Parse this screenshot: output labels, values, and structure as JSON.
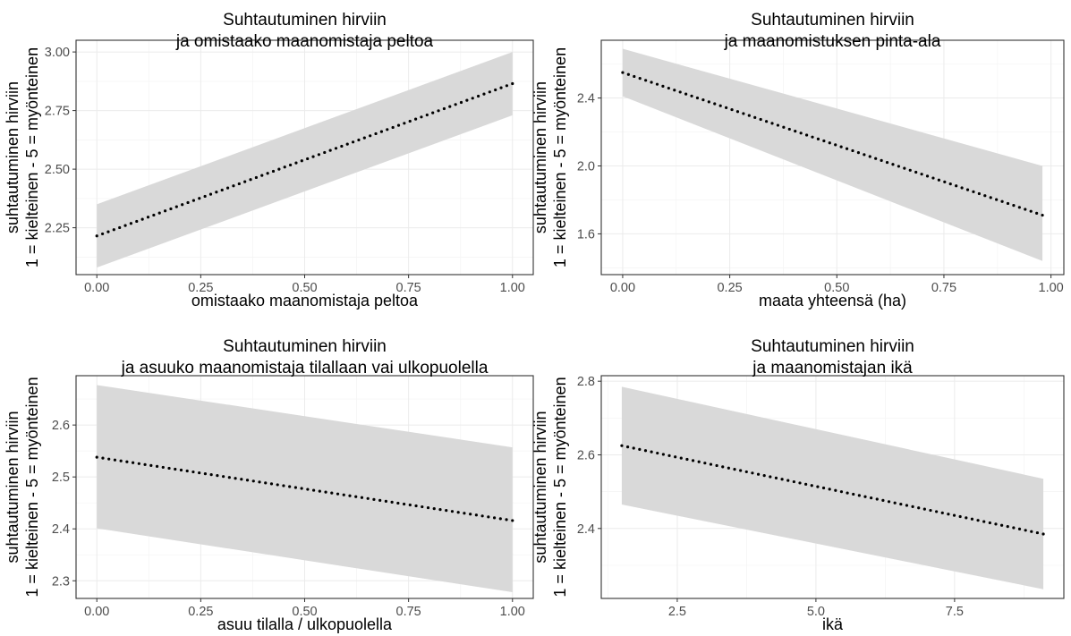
{
  "chart_data": [
    {
      "type": "line",
      "title": [
        "Suhtautuminen hirviin",
        "ja omistaako maanomistaja peltoa"
      ],
      "xlabel": "omistaako maanomistaja peltoa",
      "ylabel": [
        "suhtautuminen hirviin",
        "1 = kielteinen - 5 = myönteinen"
      ],
      "xlim": [
        -0.05,
        1.05
      ],
      "ylim": [
        2.05,
        3.05
      ],
      "xticks": [
        0,
        0.25,
        0.5,
        0.75,
        1
      ],
      "xtick_labels": [
        "0.00",
        "0.25",
        "0.50",
        "0.75",
        "1.00"
      ],
      "yticks": [
        2.25,
        2.5,
        2.75,
        3.0
      ],
      "ytick_labels": [
        "2.25",
        "2.50",
        "2.75",
        "3.00"
      ],
      "line": {
        "x": [
          0,
          1
        ],
        "y": [
          2.215,
          2.865
        ]
      },
      "ribbon": {
        "x": [
          0,
          1
        ],
        "lower": [
          2.08,
          2.73
        ],
        "upper": [
          2.35,
          3.0
        ]
      },
      "line_style": "dotted",
      "grid": true
    },
    {
      "type": "line",
      "title": [
        "Suhtautuminen hirviin",
        "ja maanomistuksen pinta-ala"
      ],
      "xlabel": "maata yhteensä (ha)",
      "ylabel": [
        "suhtautuminen hirviin",
        "1 = kielteinen - 5 = myönteinen"
      ],
      "xlim": [
        -0.05,
        1.03
      ],
      "ylim": [
        1.36,
        2.74
      ],
      "xticks": [
        0,
        0.25,
        0.5,
        0.75,
        1
      ],
      "xtick_labels": [
        "0.00",
        "0.25",
        "0.50",
        "0.75",
        "1.00"
      ],
      "yticks": [
        1.6,
        2.0,
        2.4
      ],
      "ytick_labels": [
        "1.6",
        "2.0",
        "2.4"
      ],
      "line": {
        "x": [
          0,
          0.98
        ],
        "y": [
          2.55,
          1.71
        ]
      },
      "ribbon": {
        "x": [
          0,
          0.98
        ],
        "lower": [
          2.41,
          1.44
        ],
        "upper": [
          2.69,
          2.0
        ]
      },
      "line_style": "dotted",
      "grid": true
    },
    {
      "type": "line",
      "title": [
        "Suhtautuminen hirviin",
        "ja asuuko maanomistaja tilallaan vai ulkopuolella"
      ],
      "xlabel": "asuu tilalla / ulkopuolella",
      "ylabel": [
        "suhtautuminen hirviin",
        "1 = kielteinen - 5 = myönteinen"
      ],
      "xlim": [
        -0.05,
        1.05
      ],
      "ylim": [
        2.266,
        2.695
      ],
      "xticks": [
        0,
        0.25,
        0.5,
        0.75,
        1
      ],
      "xtick_labels": [
        "0.00",
        "0.25",
        "0.50",
        "0.75",
        "1.00"
      ],
      "yticks": [
        2.3,
        2.4,
        2.5,
        2.6
      ],
      "ytick_labels": [
        "2.3",
        "2.4",
        "2.5",
        "2.6"
      ],
      "line": {
        "x": [
          0,
          1
        ],
        "y": [
          2.538,
          2.416
        ]
      },
      "ribbon": {
        "x": [
          0,
          1
        ],
        "lower": [
          2.401,
          2.278
        ],
        "upper": [
          2.677,
          2.557
        ]
      },
      "line_style": "dotted",
      "grid": true
    },
    {
      "type": "line",
      "title": [
        "Suhtautuminen hirviin",
        "ja maanomistajan ikä"
      ],
      "xlabel": "ikä",
      "ylabel": [
        "suhtautuminen hirviin",
        "1 = kielteinen - 5 = myönteinen"
      ],
      "xlim": [
        1.13,
        9.47
      ],
      "ylim": [
        2.21,
        2.815
      ],
      "xticks": [
        2.5,
        5.0,
        7.5
      ],
      "xtick_labels": [
        "2.5",
        "5.0",
        "7.5"
      ],
      "yticks": [
        2.4,
        2.6,
        2.8
      ],
      "ytick_labels": [
        "2.4",
        "2.6",
        "2.8"
      ],
      "line": {
        "x": [
          1.5,
          9.1
        ],
        "y": [
          2.625,
          2.385
        ]
      },
      "ribbon": {
        "x": [
          1.5,
          9.1
        ],
        "lower": [
          2.465,
          2.235
        ],
        "upper": [
          2.785,
          2.535
        ]
      },
      "line_style": "dotted",
      "grid": true
    }
  ]
}
